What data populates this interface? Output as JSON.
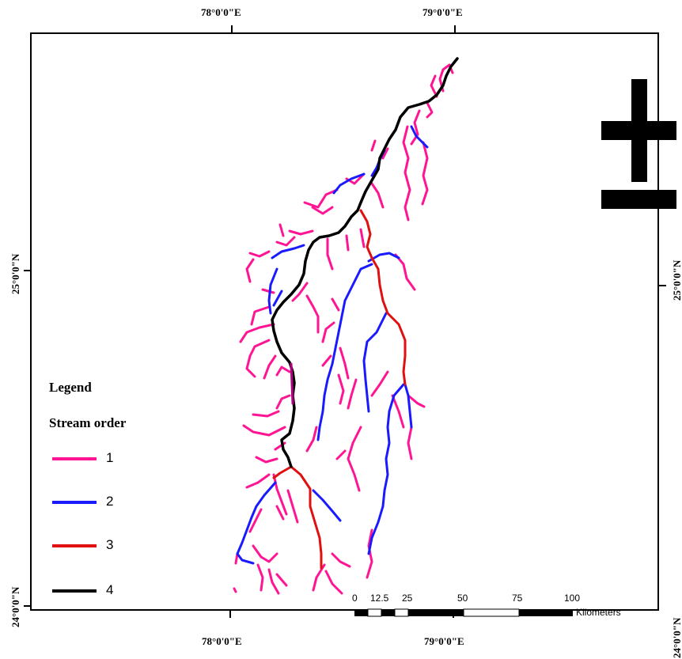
{
  "coordinates": {
    "top": [
      "78°0'0\"E",
      "79°0'0\"E"
    ],
    "bottom": [
      "78°0'0\"E",
      "79°0'0\"E"
    ],
    "left": [
      "25°0'0\"N",
      "24°0'0\"N"
    ],
    "right": [
      "25°0'0\"N",
      "24°0'0\"N"
    ]
  },
  "legend": {
    "title": "Legend",
    "subtitle": "Stream order",
    "items": [
      {
        "label": "1",
        "color": "#ff1493"
      },
      {
        "label": "2",
        "color": "#1a1aff"
      },
      {
        "label": "3",
        "color": "#e01010"
      },
      {
        "label": "4",
        "color": "#000000"
      }
    ]
  },
  "scale_bar": {
    "labels": [
      "0",
      "12.5",
      "25",
      "50",
      "75",
      "100"
    ],
    "unit": "Kilometers"
  },
  "north_arrow": {
    "icon": "north-arrow-icon"
  },
  "colors": {
    "order1": "#ff1493",
    "order2": "#1a1aff",
    "order3": "#e01010",
    "order4": "#000000"
  }
}
